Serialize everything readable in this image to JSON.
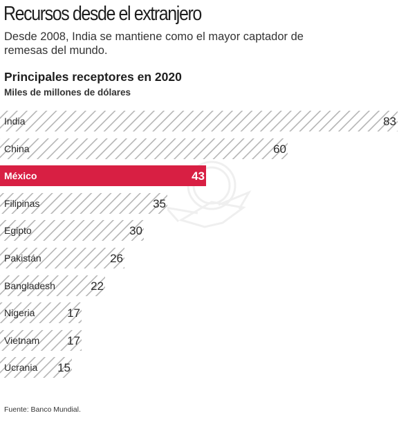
{
  "header": {
    "title": "Recursos desde el extranjero",
    "subtitle": "Desde 2008, India se mantiene como el mayor captador de remesas del mundo."
  },
  "chart": {
    "title": "Principales receptores en 2020",
    "unit": "Miles de millones de dólares"
  },
  "footer": {
    "source": "Fuente: Banco Mundial."
  },
  "colors": {
    "highlight": "#d81f43",
    "hatch": "#b4b4b4",
    "text": "#222222"
  },
  "chart_data": {
    "type": "bar",
    "orientation": "horizontal",
    "title": "Principales receptores en 2020",
    "ylabel": "Miles de millones de dólares",
    "categories": [
      "India",
      "China",
      "México",
      "Filipinas",
      "Egipto",
      "Pakistán",
      "Bangladesh",
      "Nigeria",
      "Vietnam",
      "Ucrania"
    ],
    "values": [
      83,
      60,
      43,
      35,
      30,
      26,
      22,
      17,
      17,
      15
    ],
    "highlight": "México",
    "xlim": [
      0,
      83
    ],
    "grid": false,
    "legend": "none"
  }
}
